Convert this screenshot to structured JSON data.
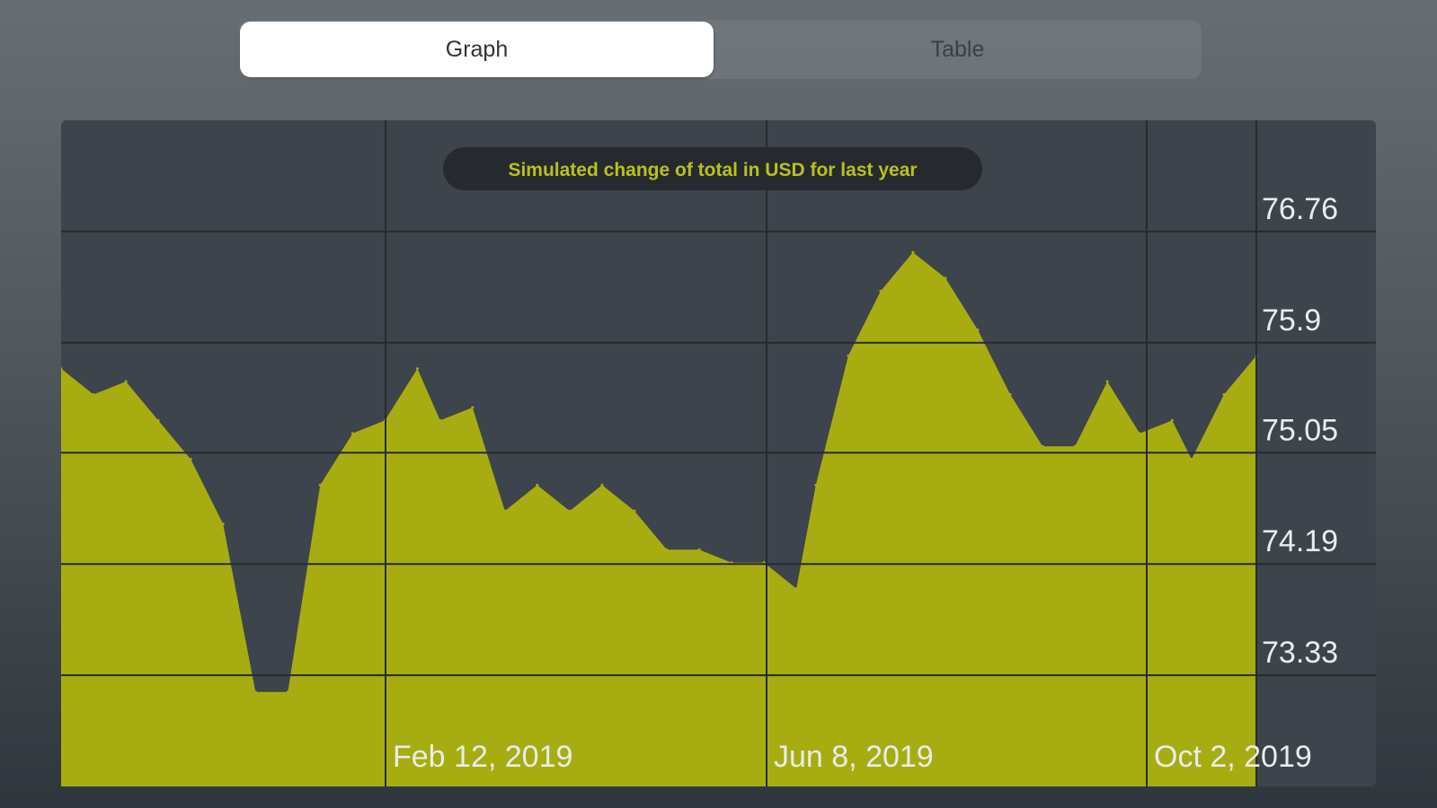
{
  "tabs": {
    "graph_label": "Graph",
    "table_label": "Table",
    "selected": "Graph"
  },
  "colors": {
    "fill": "#a7ad10",
    "plot_bg": "#3d444b",
    "grid": "#262b30",
    "title_text": "#b9c21a",
    "title_bg": "#262a2e",
    "tick_text": "#e9ecee"
  },
  "chart_data": {
    "type": "area",
    "title": "Simulated change of total in USD for last year",
    "ylim": [
      72.47,
      77.62
    ],
    "y_ticks": [
      {
        "value": 76.76,
        "label": "76.76"
      },
      {
        "value": 75.9,
        "label": "75.9"
      },
      {
        "value": 75.05,
        "label": "75.05"
      },
      {
        "value": 74.19,
        "label": "74.19"
      },
      {
        "value": 73.33,
        "label": "73.33"
      }
    ],
    "x_ticks": [
      "Feb 12, 2019",
      "Jun 8, 2019",
      "Oct 2, 2019"
    ],
    "grid": true,
    "series": [
      {
        "x": [
          "2018-10-18",
          "2018-10-28",
          "2018-11-07",
          "2018-11-17",
          "2018-11-27",
          "2018-12-07",
          "2018-12-17",
          "2018-12-27",
          "2019-01-06",
          "2019-01-16",
          "2019-01-26",
          "2019-02-05",
          "2019-02-12",
          "2019-02-22",
          "2019-03-04",
          "2019-03-14",
          "2019-03-24",
          "2019-04-03",
          "2019-04-13",
          "2019-04-23",
          "2019-05-03",
          "2019-05-13",
          "2019-05-23",
          "2019-06-02",
          "2019-06-08",
          "2019-06-18",
          "2019-06-28",
          "2019-07-08",
          "2019-07-18",
          "2019-07-28",
          "2019-08-07",
          "2019-08-17",
          "2019-08-27",
          "2019-09-06",
          "2019-09-16",
          "2019-09-26",
          "2019-10-02",
          "2019-10-12",
          "2019-10-22"
        ],
        "values": [
          75.7,
          75.5,
          75.6,
          75.3,
          75.0,
          74.5,
          73.2,
          73.2,
          74.8,
          75.2,
          75.3,
          75.7,
          75.3,
          75.4,
          74.6,
          74.8,
          74.6,
          74.8,
          74.6,
          74.3,
          74.3,
          74.2,
          74.2,
          74.0,
          74.8,
          75.8,
          76.3,
          76.6,
          76.4,
          76.0,
          75.5,
          75.1,
          75.1,
          75.6,
          75.2,
          75.3,
          75.0,
          75.5,
          75.8
        ]
      }
    ]
  }
}
